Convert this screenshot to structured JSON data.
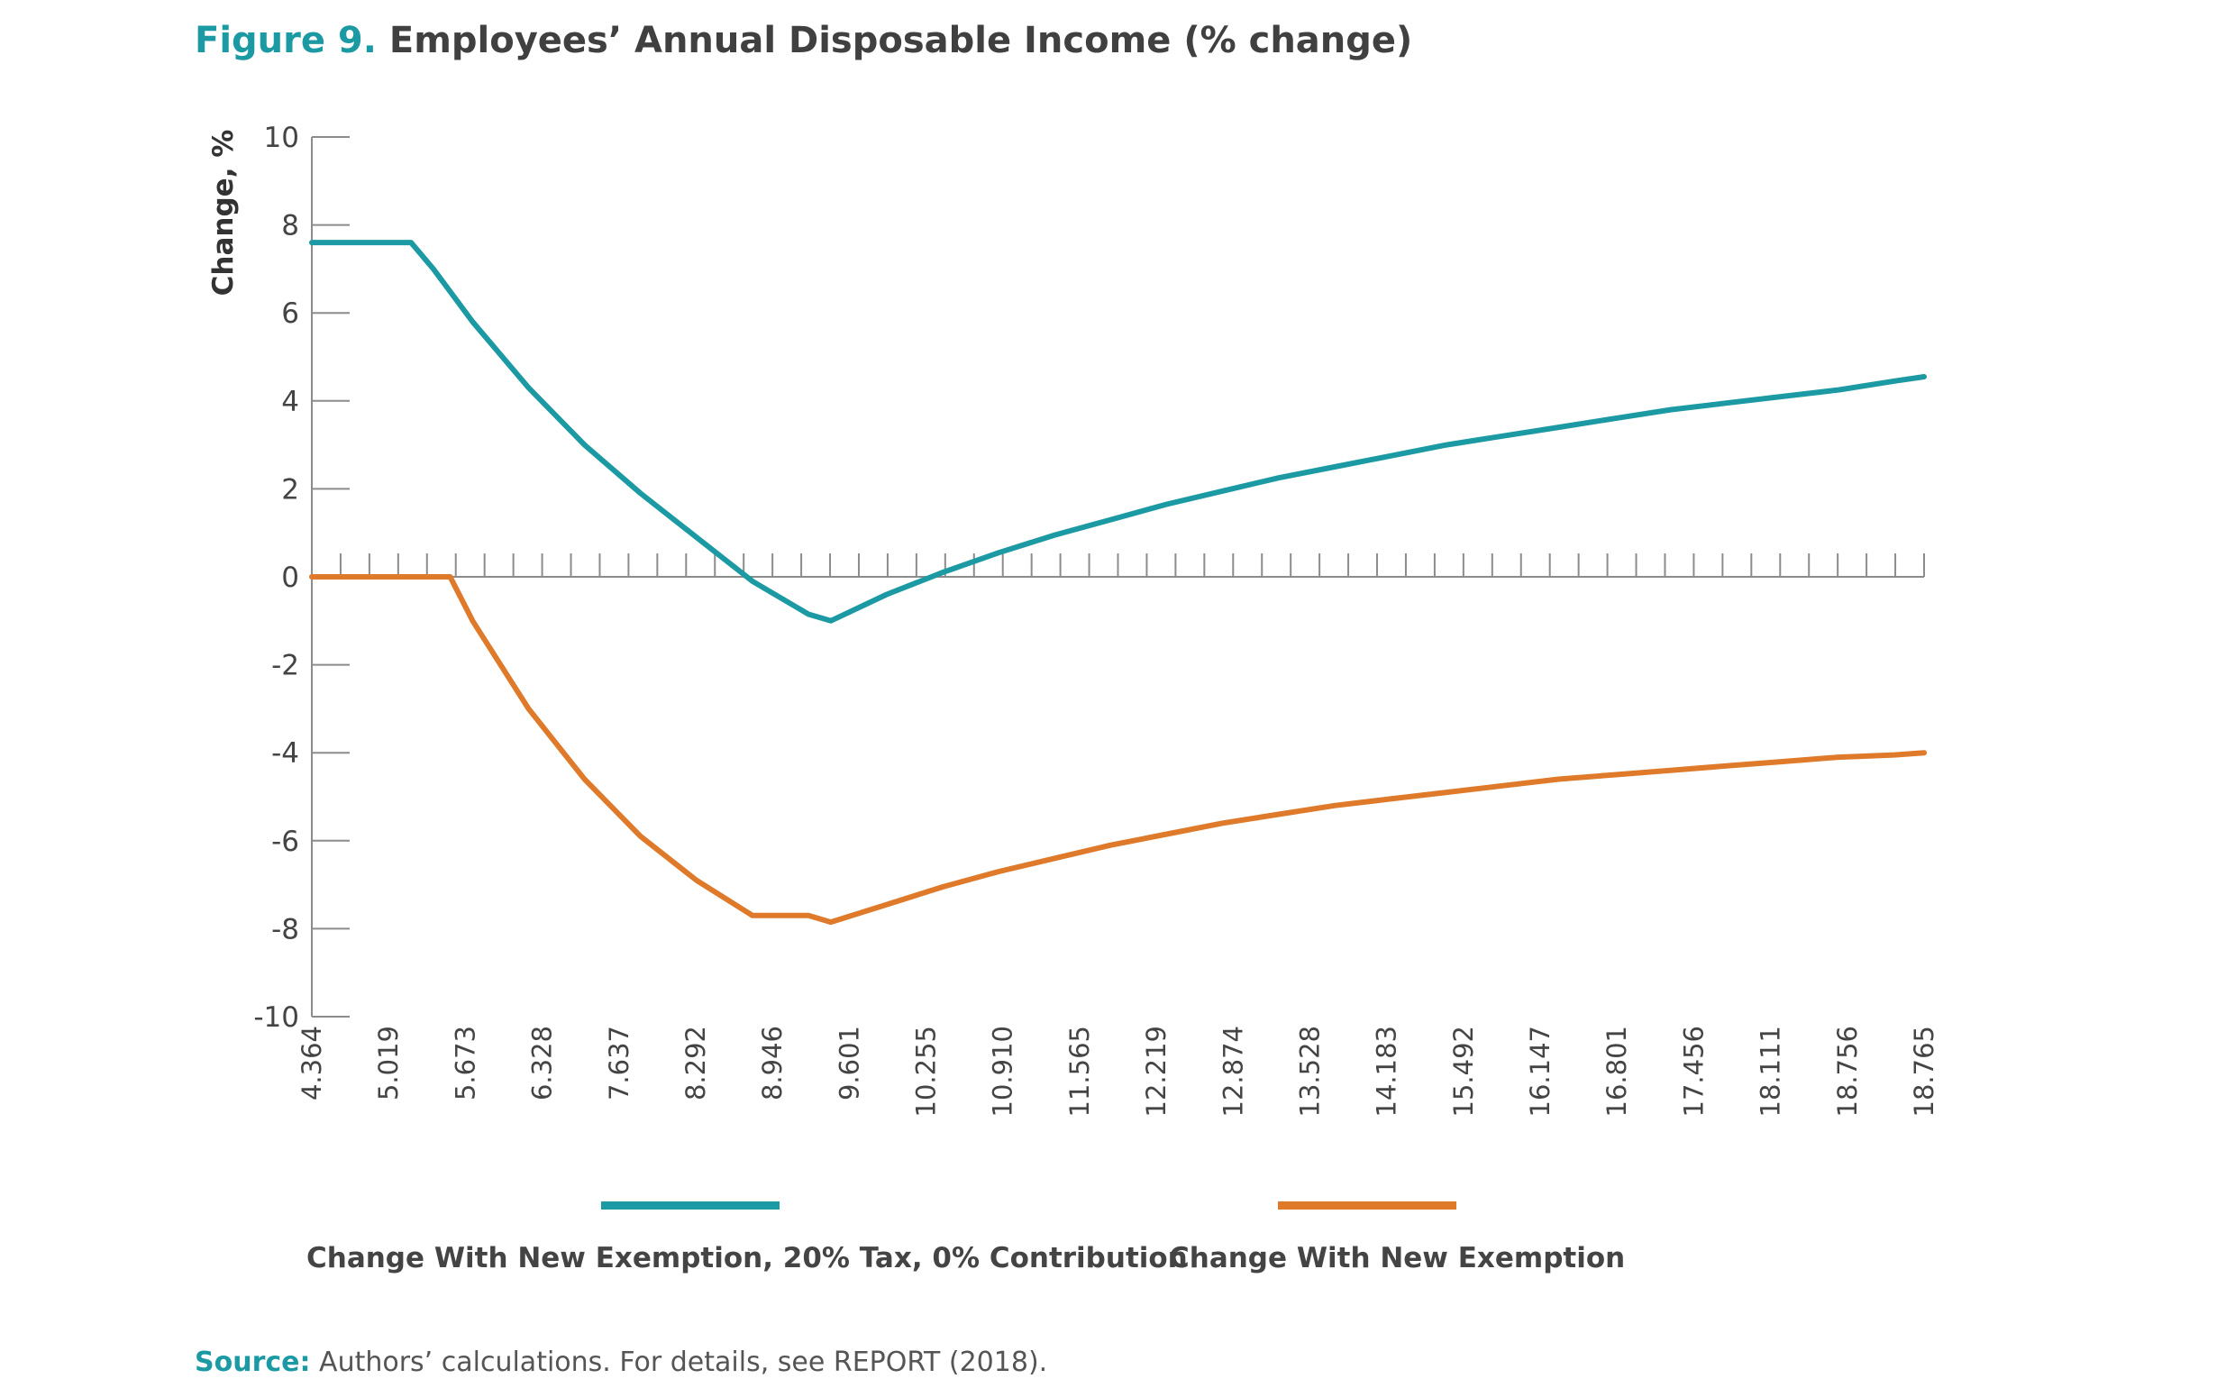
{
  "figure": {
    "label": "Figure 9.",
    "title": "Employees’ Annual Disposable Income (% change)"
  },
  "source": {
    "label": "Source:",
    "text": "Authors’ calculations. For details, see REPORT (2018)."
  },
  "colors": {
    "series_teal": "#1c9aa4",
    "series_orange": "#df7a2b",
    "axis": "#8c8c8c",
    "text": "#444444"
  },
  "chart_data": {
    "type": "line",
    "title": "Employees’ Annual Disposable Income (% change)",
    "xlabel": "",
    "ylabel": "Change, %",
    "ylim": [
      -10,
      10
    ],
    "yticks": [
      10,
      8,
      6,
      4,
      2,
      0,
      -2,
      -4,
      -6,
      -8,
      -10
    ],
    "ytick_labels": [
      "10",
      "8",
      "6",
      "4",
      "2",
      "0",
      "-2",
      "-4",
      "-6",
      "-8",
      "-10"
    ],
    "xlim": [
      4.364,
      18.765
    ],
    "xtick_labels": [
      "4.364",
      "5.019",
      "5.673",
      "6.328",
      "7.637",
      "8.292",
      "8.946",
      "9.601",
      "10.255",
      "10.910",
      "11.565",
      "12.219",
      "12.874",
      "13.528",
      "14.183",
      "15.492",
      "16.147",
      "16.801",
      "17.456",
      "18.111",
      "18.756",
      "18.765"
    ],
    "minor_tick_count": 56,
    "grid": false,
    "legend_position": "bottom",
    "series": [
      {
        "name": "Change With New Exemption, 20% Tax, 0% Contribution",
        "color": "#1c9aa4",
        "x": [
          4.364,
          5.25,
          5.45,
          5.8,
          6.3,
          6.8,
          7.3,
          7.8,
          8.3,
          8.8,
          9.0,
          9.5,
          10.0,
          10.5,
          11.0,
          11.5,
          12.0,
          12.5,
          13.0,
          13.5,
          14.0,
          14.5,
          15.0,
          15.5,
          16.0,
          16.5,
          17.0,
          17.5,
          18.0,
          18.5,
          18.765
        ],
        "values": [
          7.6,
          7.6,
          7.0,
          5.8,
          4.3,
          3.0,
          1.9,
          0.9,
          -0.1,
          -0.85,
          -1.0,
          -0.4,
          0.1,
          0.55,
          0.95,
          1.3,
          1.65,
          1.95,
          2.25,
          2.5,
          2.75,
          3.0,
          3.2,
          3.4,
          3.6,
          3.8,
          3.95,
          4.1,
          4.25,
          4.45,
          4.55
        ]
      },
      {
        "name": "Change With New Exemption",
        "color": "#df7a2b",
        "x": [
          4.364,
          5.6,
          5.8,
          6.3,
          6.8,
          7.3,
          7.8,
          8.3,
          8.8,
          9.0,
          9.5,
          10.0,
          10.5,
          11.0,
          11.5,
          12.0,
          12.5,
          13.0,
          13.5,
          14.0,
          14.5,
          15.0,
          15.5,
          16.0,
          16.5,
          17.0,
          17.5,
          18.0,
          18.5,
          18.765
        ],
        "values": [
          0,
          0,
          -1.0,
          -3.0,
          -4.6,
          -5.9,
          -6.9,
          -7.7,
          -7.7,
          -7.85,
          -7.45,
          -7.05,
          -6.7,
          -6.4,
          -6.1,
          -5.85,
          -5.6,
          -5.4,
          -5.2,
          -5.05,
          -4.9,
          -4.75,
          -4.6,
          -4.5,
          -4.4,
          -4.3,
          -4.2,
          -4.1,
          -4.05,
          -4.0
        ]
      }
    ]
  }
}
